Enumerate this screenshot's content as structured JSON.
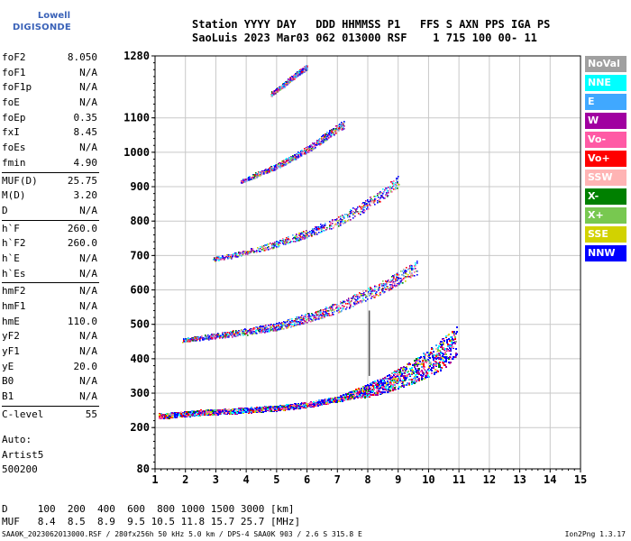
{
  "logo": {
    "top": "Lowell",
    "main": "DIGISONDE"
  },
  "header": {
    "line1": "Station YYYY DAY   DDD HHMMSS P1   FFS S AXN PPS IGA PS",
    "line2": "SaoLuis 2023 Mar03 062 013000 RSF    1 715 100 00- 11"
  },
  "params": [
    {
      "label": "foF2",
      "value": "8.050"
    },
    {
      "label": "foF1",
      "value": "N/A"
    },
    {
      "label": "foF1p",
      "value": "N/A"
    },
    {
      "label": "foE",
      "value": "N/A"
    },
    {
      "label": "foEp",
      "value": "0.35"
    },
    {
      "label": "fxI",
      "value": "8.45"
    },
    {
      "label": "foEs",
      "value": "N/A"
    },
    {
      "label": "fmin",
      "value": "4.90"
    },
    {
      "label": "MUF(D)",
      "value": "25.75"
    },
    {
      "label": "M(D)",
      "value": "3.20"
    },
    {
      "label": "D",
      "value": "N/A"
    },
    {
      "label": "h`F",
      "value": "260.0"
    },
    {
      "label": "h`F2",
      "value": "260.0"
    },
    {
      "label": "h`E",
      "value": "N/A"
    },
    {
      "label": "h`Es",
      "value": "N/A"
    },
    {
      "label": "hmF2",
      "value": "N/A"
    },
    {
      "label": "hmF1",
      "value": "N/A"
    },
    {
      "label": "hmE",
      "value": "110.0"
    },
    {
      "label": "yF2",
      "value": "N/A"
    },
    {
      "label": "yF1",
      "value": "N/A"
    },
    {
      "label": "yE",
      "value": "20.0"
    },
    {
      "label": "B0",
      "value": "N/A"
    },
    {
      "label": "B1",
      "value": "N/A"
    },
    {
      "label": "C-level",
      "value": "55"
    }
  ],
  "auto": {
    "line1": "Auto:",
    "line2": "Artist5",
    "line3": "500200"
  },
  "bottom": {
    "d_line": "D     100  200  400  600  800 1000 1500 3000 [km]",
    "muf_line": "MUF   8.4  8.5  8.9  9.5 10.5 11.8 15.7 25.7 [MHz]"
  },
  "footer": {
    "left": "SAA0K_2023062013000.RSF / 280fx256h 50 kHz 5.0 km / DPS-4 SAA0K 903 / 2.6 S 315.8 E",
    "right": "Ion2Png 1.3.17"
  },
  "legend": [
    {
      "label": "NoVal",
      "color": "#a0a0a0"
    },
    {
      "label": "NNE",
      "color": "#00ffff"
    },
    {
      "label": "E",
      "color": "#40a8ff"
    },
    {
      "label": "W",
      "color": "#a000a0"
    },
    {
      "label": "Vo-",
      "color": "#ff5aa5"
    },
    {
      "label": "Vo+",
      "color": "#ff0000"
    },
    {
      "label": "SSW",
      "color": "#ffb4b4"
    },
    {
      "label": "X-",
      "color": "#008000"
    },
    {
      "label": "X+",
      "color": "#78c850"
    },
    {
      "label": "SSE",
      "color": "#d2d200"
    },
    {
      "label": "NNW",
      "color": "#0000ff"
    }
  ],
  "chart_data": {
    "type": "scatter",
    "title": "",
    "xlabel": "",
    "ylabel": "",
    "xlim": [
      1,
      15
    ],
    "ylim": [
      80,
      1280
    ],
    "x_ticks": [
      1,
      2,
      3,
      4,
      5,
      6,
      7,
      8,
      9,
      10,
      11,
      12,
      13,
      14,
      15
    ],
    "y_ticks": [
      80,
      200,
      300,
      400,
      500,
      600,
      700,
      800,
      900,
      1000,
      1100,
      1280
    ],
    "grid": true,
    "traces": [
      {
        "name": "1-hop",
        "x": [
          1.1,
          1.8,
          2.5,
          3.2,
          4.0,
          5.0,
          6.0,
          7.0,
          8.0,
          8.8,
          9.4,
          10.0,
          10.5,
          10.9
        ],
        "y": [
          235,
          240,
          245,
          248,
          252,
          258,
          268,
          285,
          310,
          335,
          360,
          390,
          420,
          450
        ]
      },
      {
        "name": "2-hop",
        "x": [
          1.9,
          2.5,
          3.2,
          4.0,
          5.0,
          6.0,
          7.0,
          8.0,
          8.6,
          9.1,
          9.6
        ],
        "y": [
          455,
          462,
          470,
          480,
          495,
          520,
          550,
          590,
          615,
          640,
          665
        ]
      },
      {
        "name": "3-hop",
        "x": [
          2.9,
          3.5,
          4.2,
          5.0,
          6.0,
          7.0,
          7.8,
          8.5,
          9.0
        ],
        "y": [
          690,
          700,
          715,
          735,
          765,
          800,
          840,
          880,
          920
        ]
      },
      {
        "name": "4-hop",
        "x": [
          3.8,
          4.3,
          5.0,
          5.6,
          6.2,
          6.8,
          7.2
        ],
        "y": [
          915,
          935,
          960,
          990,
          1020,
          1060,
          1080
        ]
      },
      {
        "name": "5-hop",
        "x": [
          4.8,
          5.2,
          5.6,
          6.0
        ],
        "y": [
          1170,
          1195,
          1225,
          1250
        ]
      }
    ],
    "vertical_marker": {
      "x": 8.05,
      "y": [
        350,
        540
      ]
    }
  }
}
